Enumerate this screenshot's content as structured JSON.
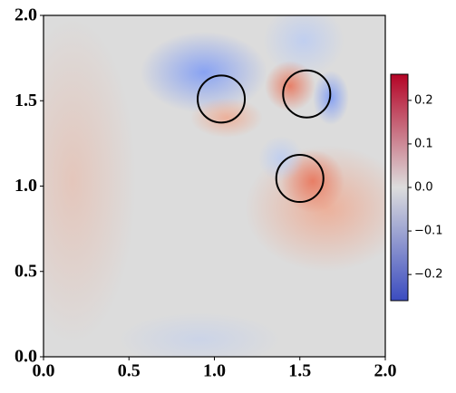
{
  "chart_data": {
    "type": "field",
    "xlim": [
      0,
      2
    ],
    "ylim": [
      0,
      2
    ],
    "xticks": [
      {
        "value": 0,
        "label": "0.0"
      },
      {
        "value": 0.5,
        "label": "0.5"
      },
      {
        "value": 1,
        "label": "1.0"
      },
      {
        "value": 1.5,
        "label": "1.5"
      },
      {
        "value": 2,
        "label": "2.0"
      }
    ],
    "yticks": [
      {
        "value": 0,
        "label": "0.0"
      },
      {
        "value": 0.5,
        "label": "0.5"
      },
      {
        "value": 1,
        "label": "1.0"
      },
      {
        "value": 1.5,
        "label": "1.5"
      },
      {
        "value": 2,
        "label": "2.0"
      }
    ],
    "circles": {
      "x": [
        1.04,
        1.54,
        1.5
      ],
      "y": [
        1.51,
        1.54,
        1.045
      ],
      "r": [
        0.138,
        0.138,
        0.138
      ],
      "color": "#000000"
    },
    "colorbar": {
      "clim": [
        -0.26,
        0.26
      ],
      "colors": [
        "#3b4cc0",
        "#dddddd",
        "#b40426"
      ],
      "ticks": [
        {
          "value": -0.2,
          "label": "−0.2"
        },
        {
          "value": -0.1,
          "label": "−0.1"
        },
        {
          "value": 0,
          "label": "0.0"
        },
        {
          "value": 0.1,
          "label": "0.1"
        },
        {
          "value": 0.2,
          "label": "0.2"
        }
      ]
    }
  }
}
